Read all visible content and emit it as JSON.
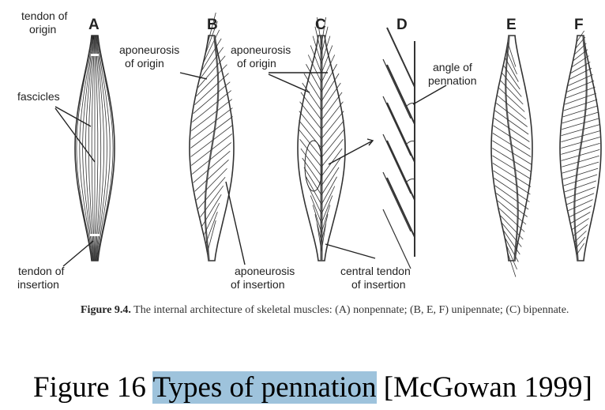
{
  "panels": [
    "A",
    "B",
    "C",
    "D",
    "E",
    "F"
  ],
  "labels": {
    "tendon_of_origin": [
      "tendon of",
      "origin"
    ],
    "fascicles": "fascicles",
    "tendon_of_insertion": [
      "tendon of",
      "insertion"
    ],
    "aponeurosis_of_origin_b": [
      "aponeurosis",
      "of origin"
    ],
    "aponeurosis_of_origin_c": [
      "aponeurosis",
      "of origin"
    ],
    "angle_of_pennation": [
      "angle of",
      "pennation"
    ],
    "aponeurosis_of_insertion": [
      "aponeurosis",
      "of insertion"
    ],
    "central_tendon_of_insertion": [
      "central tendon",
      "of insertion"
    ]
  },
  "caption": {
    "bold": "Figure 9.4.",
    "text": " The internal architecture of skeletal muscles: (A) nonpennate; (B, E, F) unipennate; (C) bipennate."
  },
  "title": {
    "prefix": "Figure 16 ",
    "highlight": "Types of pennation",
    "suffix": " [McGowan 1999]",
    "highlight_color": "#9ec3dc"
  }
}
